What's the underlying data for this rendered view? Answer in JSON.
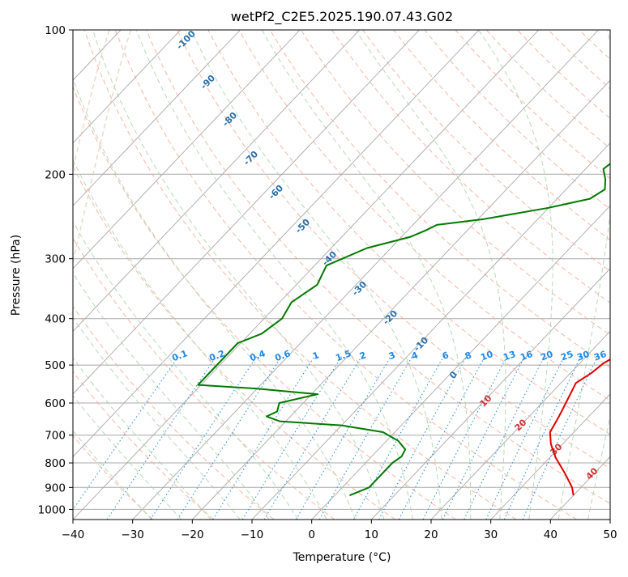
{
  "chart_data": {
    "type": "line",
    "subtype": "skew-T log-P",
    "title": "wetPf2_C2E5.2025.190.07.43.G02",
    "xlabel": "Temperature (°C)",
    "ylabel": "Pressure (hPa)",
    "xlim": [
      -40,
      50
    ],
    "ylim": [
      1050,
      100
    ],
    "y_scale": "log",
    "x_ticks": [
      "−40",
      "−30",
      "−20",
      "−10",
      "0",
      "10",
      "20",
      "30",
      "40",
      "50"
    ],
    "x_tick_values": [
      -40,
      -30,
      -20,
      -10,
      0,
      10,
      20,
      30,
      40,
      50
    ],
    "y_ticks": [
      "100",
      "200",
      "300",
      "400",
      "500",
      "600",
      "700",
      "800",
      "900",
      "1000"
    ],
    "y_tick_values": [
      100,
      200,
      300,
      400,
      500,
      600,
      700,
      800,
      900,
      1000
    ],
    "grid": true,
    "colors": {
      "temperature": "#e00000",
      "dewpoint": "#007a00",
      "isotherm": "#a8a8a8",
      "dry_adiabat": "#f6a58e",
      "moist_adiabat": "#a9d3a9",
      "mixing_ratio": "#1e88e5",
      "dry_adiabat_label": "#2a6fa8",
      "moist_adiabat_label": "#d03030",
      "heavy_curve": "#e2c8a8"
    },
    "series": [
      {
        "role": "temperature",
        "points": [
          {
            "p": 100,
            "t": 6
          },
          {
            "p": 115,
            "t": 5.5
          },
          {
            "p": 130,
            "t": 6.5
          },
          {
            "p": 160,
            "t": 9
          },
          {
            "p": 190,
            "t": 11.5
          },
          {
            "p": 220,
            "t": 13.5
          },
          {
            "p": 250,
            "t": 14.5
          },
          {
            "p": 280,
            "t": 16.5
          },
          {
            "p": 310,
            "t": 19.5
          },
          {
            "p": 340,
            "t": 21.5
          },
          {
            "p": 380,
            "t": 22.5
          },
          {
            "p": 420,
            "t": 24
          },
          {
            "p": 445,
            "t": 25.5
          },
          {
            "p": 470,
            "t": 25.5
          },
          {
            "p": 495,
            "t": 24
          },
          {
            "p": 520,
            "t": 23.5
          },
          {
            "p": 545,
            "t": 22.5
          },
          {
            "p": 600,
            "t": 24
          },
          {
            "p": 640,
            "t": 25
          },
          {
            "p": 690,
            "t": 26
          },
          {
            "p": 730,
            "t": 28
          },
          {
            "p": 780,
            "t": 31
          },
          {
            "p": 840,
            "t": 35
          },
          {
            "p": 900,
            "t": 38.5
          },
          {
            "p": 935,
            "t": 40
          }
        ]
      },
      {
        "role": "dewpoint",
        "points": [
          {
            "p": 100,
            "t": 2.5
          },
          {
            "p": 105,
            "t": 2.5
          },
          {
            "p": 120,
            "t": 1.5
          },
          {
            "p": 145,
            "t": -1
          },
          {
            "p": 165,
            "t": -4
          },
          {
            "p": 180,
            "t": -6
          },
          {
            "p": 195,
            "t": -7
          },
          {
            "p": 205,
            "t": -5
          },
          {
            "p": 215,
            "t": -3.5
          },
          {
            "p": 225,
            "t": -4.5
          },
          {
            "p": 235,
            "t": -10
          },
          {
            "p": 248,
            "t": -19
          },
          {
            "p": 255,
            "t": -26
          },
          {
            "p": 262,
            "t": -27
          },
          {
            "p": 270,
            "t": -28.5
          },
          {
            "p": 285,
            "t": -34
          },
          {
            "p": 310,
            "t": -38
          },
          {
            "p": 340,
            "t": -36.5
          },
          {
            "p": 370,
            "t": -38
          },
          {
            "p": 400,
            "t": -37
          },
          {
            "p": 430,
            "t": -38
          },
          {
            "p": 450,
            "t": -40.5
          },
          {
            "p": 550,
            "t": -40.5
          },
          {
            "p": 560,
            "t": -30
          },
          {
            "p": 575,
            "t": -19
          },
          {
            "p": 600,
            "t": -24
          },
          {
            "p": 625,
            "t": -23
          },
          {
            "p": 640,
            "t": -24
          },
          {
            "p": 655,
            "t": -21
          },
          {
            "p": 668,
            "t": -10
          },
          {
            "p": 690,
            "t": -2
          },
          {
            "p": 720,
            "t": 2
          },
          {
            "p": 750,
            "t": 4.5
          },
          {
            "p": 775,
            "t": 5
          },
          {
            "p": 800,
            "t": 4.5
          },
          {
            "p": 860,
            "t": 4.5
          },
          {
            "p": 900,
            "t": 4.5
          },
          {
            "p": 935,
            "t": 2.5
          }
        ]
      }
    ],
    "dry_adiabat_labels": [
      "-100",
      "-90",
      "-80",
      "-70",
      "-60",
      "-50",
      "-40",
      "-30",
      "-20",
      "-10",
      "0"
    ],
    "dry_adiabat_values": [
      -100,
      -90,
      -80,
      -70,
      -60,
      -50,
      -40,
      -30,
      -20,
      -10,
      0
    ],
    "moist_adiabat_labels": [
      "10",
      "20",
      "30",
      "40"
    ],
    "moist_adiabat_values": [
      10,
      20,
      30,
      40
    ],
    "mixing_ratio_labels": [
      "0.1",
      "0.2",
      "0.4",
      "0.6",
      "1",
      "1.5",
      "2",
      "3",
      "4",
      "6",
      "8",
      "10",
      "13",
      "16",
      "20",
      "25",
      "30",
      "36"
    ],
    "mixing_ratio_values": [
      0.1,
      0.2,
      0.4,
      0.6,
      1,
      1.5,
      2,
      3,
      4,
      6,
      8,
      10,
      13,
      16,
      20,
      25,
      30,
      36
    ]
  }
}
